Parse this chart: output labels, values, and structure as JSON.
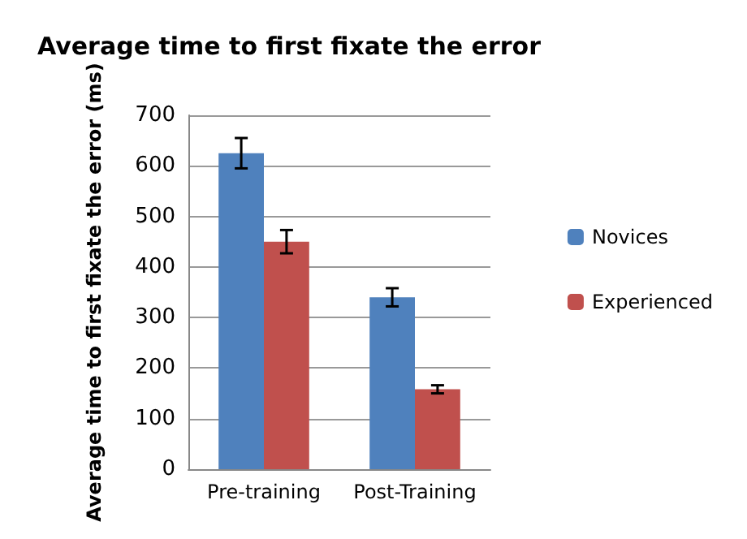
{
  "chart_data": {
    "type": "bar",
    "title": "Average time to first fixate the error",
    "ylabel": "Average time to first fixate the error (ms)",
    "categories": [
      "Pre-training",
      "Post-Training"
    ],
    "series": [
      {
        "name": "Novices",
        "color": "#4f81bd",
        "values": [
          625,
          340
        ],
        "errors": [
          30,
          18
        ]
      },
      {
        "name": "Experienced",
        "color": "#c0504d",
        "values": [
          450,
          158
        ],
        "errors": [
          23,
          8
        ]
      }
    ],
    "ylim": [
      0,
      700
    ],
    "yticks": [
      0,
      100,
      200,
      300,
      400,
      500,
      600,
      700
    ],
    "grid": "y",
    "legend": "right"
  }
}
